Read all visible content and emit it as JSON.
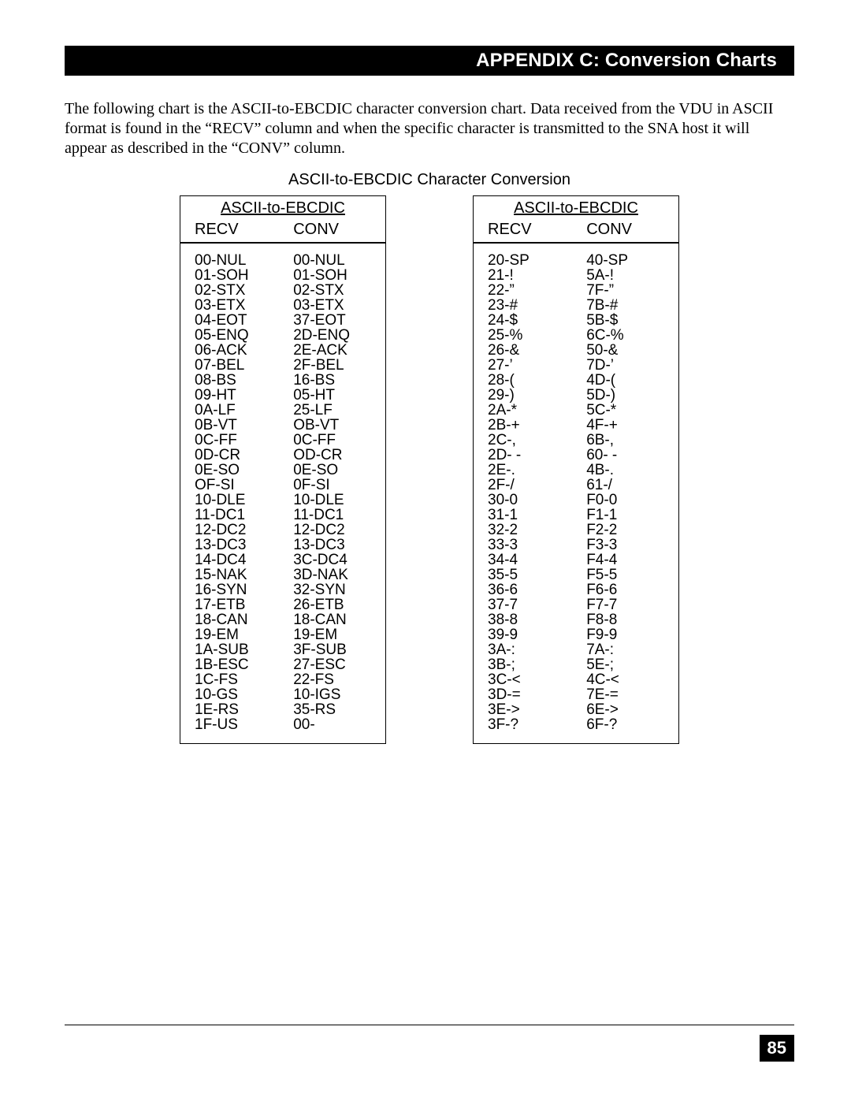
{
  "header": {
    "title": "APPENDIX C: Conversion Charts"
  },
  "intro": "The following chart is the ASCII-to-EBCDIC character conversion chart.  Data received from the VDU in ASCII format is found in the “RECV” column and when the specific character is transmitted to the SNA host it will appear as described in the “CONV” column.",
  "chart_title": "ASCII-to-EBCDIC Character Conversion",
  "columns": {
    "recv": "RECV",
    "conv": "CONV"
  },
  "table_header": "ASCII-to-EBCDIC",
  "left_table": {
    "rows": [
      {
        "recv": "00-NUL",
        "conv": "00-NUL"
      },
      {
        "recv": "01-SOH",
        "conv": "01-SOH"
      },
      {
        "recv": "02-STX",
        "conv": "02-STX"
      },
      {
        "recv": "03-ETX",
        "conv": "03-ETX"
      },
      {
        "recv": "04-EOT",
        "conv": "37-EOT"
      },
      {
        "recv": "05-ENQ",
        "conv": "2D-ENQ"
      },
      {
        "recv": "06-ACK",
        "conv": "2E-ACK"
      },
      {
        "recv": "07-BEL",
        "conv": "2F-BEL"
      },
      {
        "recv": "08-BS",
        "conv": "16-BS"
      },
      {
        "recv": "09-HT",
        "conv": "05-HT"
      },
      {
        "recv": "0A-LF",
        "conv": "25-LF"
      },
      {
        "recv": "0B-VT",
        "conv": "OB-VT"
      },
      {
        "recv": "0C-FF",
        "conv": "0C-FF"
      },
      {
        "recv": "0D-CR",
        "conv": "OD-CR"
      },
      {
        "recv": "0E-SO",
        "conv": "0E-SO"
      },
      {
        "recv": "OF-SI",
        "conv": "0F-SI"
      },
      {
        "recv": "10-DLE",
        "conv": "10-DLE"
      },
      {
        "recv": "11-DC1",
        "conv": "11-DC1"
      },
      {
        "recv": "12-DC2",
        "conv": "12-DC2"
      },
      {
        "recv": "13-DC3",
        "conv": "13-DC3"
      },
      {
        "recv": "14-DC4",
        "conv": "3C-DC4"
      },
      {
        "recv": "15-NAK",
        "conv": "3D-NAK"
      },
      {
        "recv": "16-SYN",
        "conv": "32-SYN"
      },
      {
        "recv": "17-ETB",
        "conv": "26-ETB"
      },
      {
        "recv": "18-CAN",
        "conv": "18-CAN"
      },
      {
        "recv": "19-EM",
        "conv": "19-EM"
      },
      {
        "recv": "1A-SUB",
        "conv": "3F-SUB"
      },
      {
        "recv": "1B-ESC",
        "conv": "27-ESC"
      },
      {
        "recv": "1C-FS",
        "conv": "22-FS"
      },
      {
        "recv": "10-GS",
        "conv": "10-IGS"
      },
      {
        "recv": "1E-RS",
        "conv": "35-RS"
      },
      {
        "recv": "1F-US",
        "conv": "00-"
      }
    ]
  },
  "right_table": {
    "rows": [
      {
        "recv": "20-SP",
        "conv": "40-SP"
      },
      {
        "recv": "21-!",
        "conv": "5A-!"
      },
      {
        "recv": "22-”",
        "conv": "7F-”"
      },
      {
        "recv": "23-#",
        "conv": "7B-#"
      },
      {
        "recv": "24-$",
        "conv": "5B-$"
      },
      {
        "recv": "25-%",
        "conv": "6C-%"
      },
      {
        "recv": "26-&",
        "conv": "50-&"
      },
      {
        "recv": "27-’",
        "conv": "7D-’"
      },
      {
        "recv": "28-(",
        "conv": "4D-("
      },
      {
        "recv": "29-)",
        "conv": "5D-)"
      },
      {
        "recv": "2A-*",
        "conv": "5C-*"
      },
      {
        "recv": "2B-+",
        "conv": "4F-+"
      },
      {
        "recv": "2C-,",
        "conv": "6B-,"
      },
      {
        "recv": "2D- -",
        "conv": "60- -"
      },
      {
        "recv": "2E-.",
        "conv": "4B-."
      },
      {
        "recv": "2F-/",
        "conv": "61-/"
      },
      {
        "recv": "30-0",
        "conv": "F0-0"
      },
      {
        "recv": "31-1",
        "conv": "F1-1"
      },
      {
        "recv": "32-2",
        "conv": "F2-2"
      },
      {
        "recv": "33-3",
        "conv": "F3-3"
      },
      {
        "recv": "34-4",
        "conv": "F4-4"
      },
      {
        "recv": "35-5",
        "conv": "F5-5"
      },
      {
        "recv": "36-6",
        "conv": "F6-6"
      },
      {
        "recv": "37-7",
        "conv": "F7-7"
      },
      {
        "recv": "38-8",
        "conv": "F8-8"
      },
      {
        "recv": "39-9",
        "conv": "F9-9"
      },
      {
        "recv": "3A-:",
        "conv": "7A-:"
      },
      {
        "recv": "3B-;",
        "conv": "5E-;"
      },
      {
        "recv": "3C-<",
        "conv": "4C-<"
      },
      {
        "recv": "3D-=",
        "conv": "7E-="
      },
      {
        "recv": "3E->",
        "conv": "6E->"
      },
      {
        "recv": "3F-?",
        "conv": "6F-?"
      }
    ]
  },
  "page_number": "85"
}
